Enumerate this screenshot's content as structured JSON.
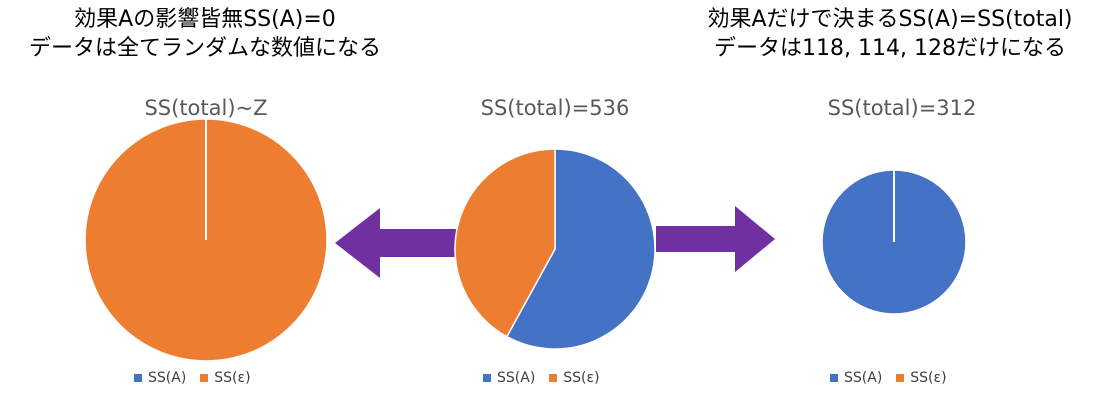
{
  "left_heading": {
    "line1": "効果Aの影響皆無SS(A)=0",
    "line2": "データは全てランダムな数値になる"
  },
  "right_heading": {
    "line1": "効果Aだけで決まるSS(A)=SS(total)",
    "line2": "データは118, 114, 128だけになる"
  },
  "colors": {
    "ssa": "#4472C4",
    "sse": "#ED7D31",
    "arrow": "#7030A0"
  },
  "chart_data": [
    {
      "type": "pie",
      "title": "SS(total)~Z",
      "categories": [
        "SS(A)",
        "SS(ε)"
      ],
      "values": [
        0,
        1
      ],
      "legend": "bottom"
    },
    {
      "type": "pie",
      "title": "SS(total)=536",
      "categories": [
        "SS(A)",
        "SS(ε)"
      ],
      "values": [
        0.58,
        0.42
      ],
      "legend": "bottom"
    },
    {
      "type": "pie",
      "title": "SS(total)=312",
      "categories": [
        "SS(A)",
        "SS(ε)"
      ],
      "values": [
        1,
        0
      ],
      "legend": "bottom"
    }
  ],
  "legends": [
    {
      "ssa": "SS(A)",
      "sse": "SS(ε)"
    },
    {
      "ssa": "SS(A)",
      "sse": "SS(ε)"
    },
    {
      "ssa": "SS(A)",
      "sse": "SS(ε)"
    }
  ]
}
